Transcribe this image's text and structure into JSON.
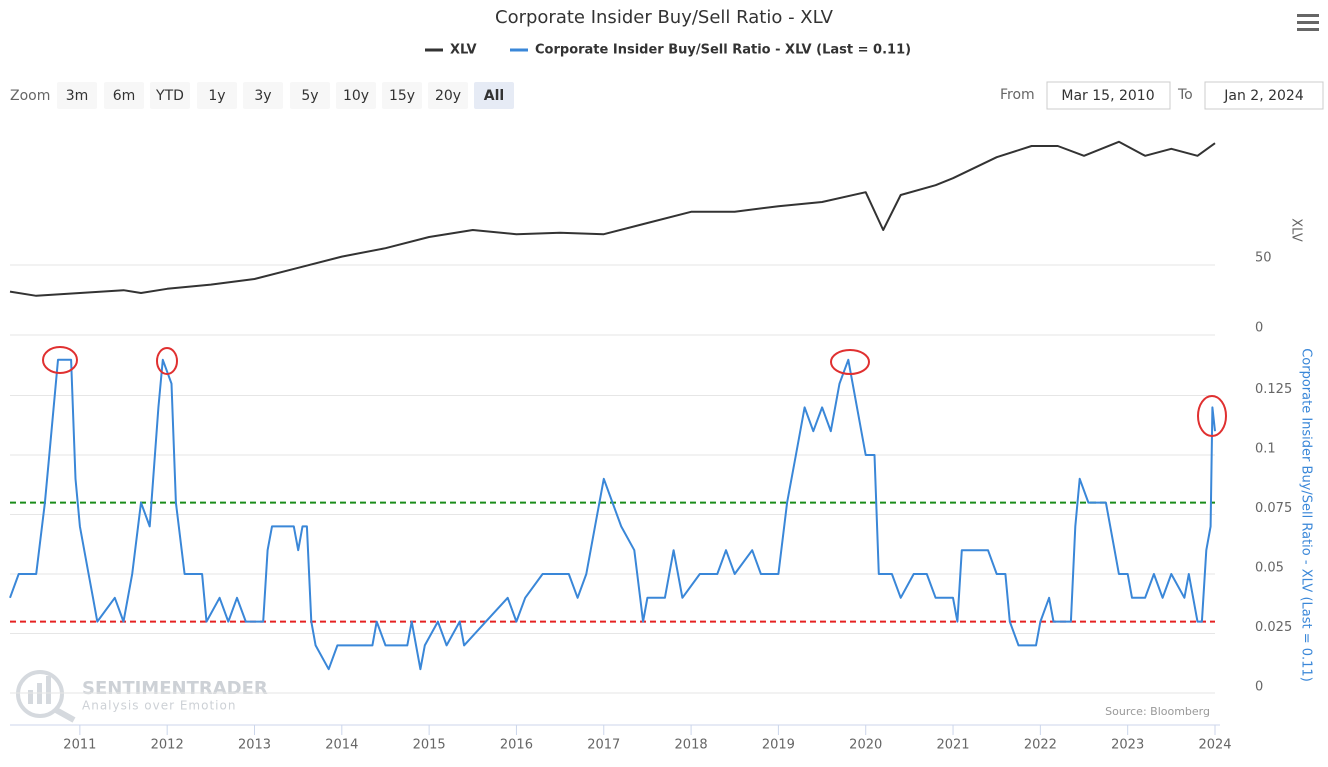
{
  "chart_data": {
    "type": "line",
    "title": "Corporate Insider Buy/Sell Ratio - XLV",
    "ylabel": "XLV",
    "y2label": "Corporate Insider Buy/Sell Ratio - XLV (Last = 0.11)",
    "xlim": [
      2010.2,
      2024.0
    ],
    "xticks": [
      2011,
      2012,
      2013,
      2014,
      2015,
      2016,
      2017,
      2018,
      2019,
      2020,
      2021,
      2022,
      2023,
      2024
    ],
    "ylim": [
      0,
      150
    ],
    "yticks": [
      0,
      50
    ],
    "y2lim": [
      0,
      0.15
    ],
    "y2ticks": [
      0,
      0.025,
      0.05,
      0.075,
      0.1,
      0.125
    ],
    "grid": true,
    "reference_lines": [
      {
        "value": 0.08,
        "color": "#1a8c1a",
        "axis": "y2"
      },
      {
        "value": 0.03,
        "color": "#e52222",
        "axis": "y2"
      }
    ],
    "series": [
      {
        "name": "XLV",
        "color": "#333333",
        "axis": "y",
        "x": [
          2010.2,
          2010.5,
          2011.0,
          2011.5,
          2011.7,
          2012.0,
          2012.5,
          2013.0,
          2013.5,
          2014.0,
          2014.5,
          2015.0,
          2015.5,
          2016.0,
          2016.5,
          2017.0,
          2017.5,
          2018.0,
          2018.5,
          2019.0,
          2019.5,
          2020.0,
          2020.2,
          2020.4,
          2020.8,
          2021.0,
          2021.5,
          2021.9,
          2022.2,
          2022.5,
          2022.9,
          2023.2,
          2023.5,
          2023.8,
          2024.0
        ],
        "values": [
          31,
          28,
          30,
          32,
          30,
          33,
          36,
          40,
          48,
          56,
          62,
          70,
          75,
          72,
          73,
          72,
          80,
          88,
          88,
          92,
          95,
          102,
          75,
          100,
          107,
          112,
          127,
          135,
          135,
          128,
          138,
          128,
          133,
          128,
          137
        ]
      },
      {
        "name": "Corporate Insider Buy/Sell Ratio - XLV (Last = 0.11)",
        "color": "#3a87d8",
        "axis": "y2",
        "x": [
          2010.2,
          2010.3,
          2010.5,
          2010.6,
          2010.65,
          2010.75,
          2010.9,
          2010.95,
          2011.0,
          2011.1,
          2011.15,
          2011.2,
          2011.4,
          2011.5,
          2011.6,
          2011.7,
          2011.8,
          2011.9,
          2011.95,
          2012.05,
          2012.1,
          2012.2,
          2012.4,
          2012.45,
          2012.6,
          2012.7,
          2012.8,
          2012.9,
          2013.1,
          2013.15,
          2013.2,
          2013.45,
          2013.5,
          2013.55,
          2013.6,
          2013.65,
          2013.7,
          2013.85,
          2013.95,
          2014.35,
          2014.4,
          2014.5,
          2014.75,
          2014.8,
          2014.9,
          2014.95,
          2015.1,
          2015.2,
          2015.35,
          2015.4,
          2015.65,
          2015.9,
          2016.0,
          2016.1,
          2016.3,
          2016.6,
          2016.7,
          2016.8,
          2016.9,
          2017.0,
          2017.1,
          2017.2,
          2017.35,
          2017.45,
          2017.5,
          2017.7,
          2017.8,
          2017.9,
          2018.1,
          2018.3,
          2018.4,
          2018.5,
          2018.7,
          2018.8,
          2019.0,
          2019.1,
          2019.2,
          2019.3,
          2019.4,
          2019.5,
          2019.6,
          2019.7,
          2019.8,
          2019.9,
          2020.0,
          2020.1,
          2020.15,
          2020.3,
          2020.4,
          2020.55,
          2020.7,
          2020.8,
          2021.0,
          2021.05,
          2021.1,
          2021.4,
          2021.5,
          2021.6,
          2021.65,
          2021.75,
          2021.95,
          2022.0,
          2022.1,
          2022.15,
          2022.35,
          2022.4,
          2022.45,
          2022.55,
          2022.75,
          2022.85,
          2022.9,
          2023.0,
          2023.05,
          2023.2,
          2023.3,
          2023.4,
          2023.5,
          2023.65,
          2023.7,
          2023.8,
          2023.85,
          2023.9,
          2023.95,
          2023.97,
          2024.0
        ],
        "values": [
          0.04,
          0.05,
          0.05,
          0.08,
          0.1,
          0.14,
          0.14,
          0.09,
          0.07,
          0.05,
          0.04,
          0.03,
          0.04,
          0.03,
          0.05,
          0.08,
          0.07,
          0.12,
          0.14,
          0.13,
          0.08,
          0.05,
          0.05,
          0.03,
          0.04,
          0.03,
          0.04,
          0.03,
          0.03,
          0.06,
          0.07,
          0.07,
          0.06,
          0.07,
          0.07,
          0.03,
          0.02,
          0.01,
          0.02,
          0.02,
          0.03,
          0.02,
          0.02,
          0.03,
          0.01,
          0.02,
          0.03,
          0.02,
          0.03,
          0.02,
          0.03,
          0.04,
          0.03,
          0.04,
          0.05,
          0.05,
          0.04,
          0.05,
          0.07,
          0.09,
          0.08,
          0.07,
          0.06,
          0.03,
          0.04,
          0.04,
          0.06,
          0.04,
          0.05,
          0.05,
          0.06,
          0.05,
          0.06,
          0.05,
          0.05,
          0.08,
          0.1,
          0.12,
          0.11,
          0.12,
          0.11,
          0.13,
          0.14,
          0.12,
          0.1,
          0.1,
          0.05,
          0.05,
          0.04,
          0.05,
          0.05,
          0.04,
          0.04,
          0.03,
          0.06,
          0.06,
          0.05,
          0.05,
          0.03,
          0.02,
          0.02,
          0.03,
          0.04,
          0.03,
          0.03,
          0.07,
          0.09,
          0.08,
          0.08,
          0.06,
          0.05,
          0.05,
          0.04,
          0.04,
          0.05,
          0.04,
          0.05,
          0.04,
          0.05,
          0.03,
          0.03,
          0.06,
          0.07,
          0.12,
          0.11
        ]
      }
    ],
    "credit": "Source: Bloomberg"
  },
  "ui": {
    "zoom_label": "Zoom",
    "zoom_buttons": [
      "3m",
      "6m",
      "YTD",
      "1y",
      "3y",
      "5y",
      "10y",
      "15y",
      "20y",
      "All"
    ],
    "from_label": "From",
    "from_value": "Mar 15, 2010",
    "to_label": "To",
    "to_value": "Jan 2, 2024"
  },
  "watermark": {
    "name": "SENTIMENTRADER",
    "tagline": "Analysis over Emotion"
  }
}
